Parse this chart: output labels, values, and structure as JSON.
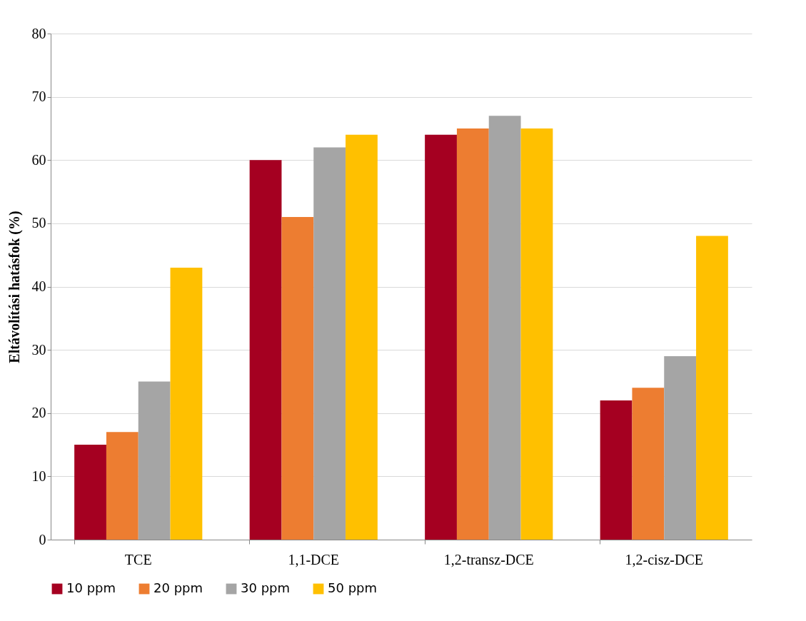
{
  "chart_data": {
    "type": "bar",
    "ylabel": "Eltávolítási hatásfok (%)",
    "categories": [
      "TCE",
      "1,1-DCE",
      "1,2-transz-DCE",
      "1,2-cisz-DCE"
    ],
    "series": [
      {
        "name": "10 ppm",
        "color": "#a50021",
        "values": [
          15,
          60,
          64,
          22
        ]
      },
      {
        "name": "20 ppm",
        "color": "#ed7d31",
        "values": [
          17,
          51,
          65,
          24
        ]
      },
      {
        "name": "30 ppm",
        "color": "#a5a5a5",
        "values": [
          25,
          62,
          67,
          29
        ]
      },
      {
        "name": "50 ppm",
        "color": "#ffc000",
        "values": [
          43,
          64,
          65,
          48
        ]
      }
    ],
    "ylim": [
      0,
      80
    ],
    "yticks": [
      0,
      10,
      20,
      30,
      40,
      50,
      60,
      70,
      80
    ],
    "grid": "y",
    "legend": "bottom"
  }
}
